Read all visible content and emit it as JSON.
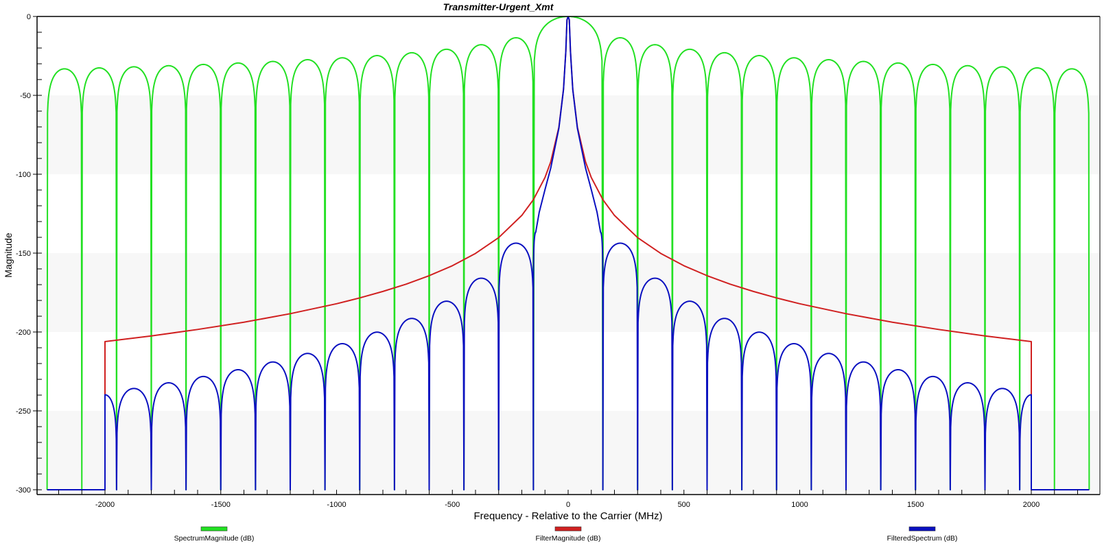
{
  "chart_data": {
    "type": "line",
    "title": "Transmitter-Urgent_Xmt",
    "xlabel": "Frequency - Relative to the Carrier (MHz)",
    "ylabel": "Magnitude",
    "xlim": [
      -2290,
      2290
    ],
    "ylim": [
      -303,
      0
    ],
    "x_ticks": [
      "-2000",
      "-1500",
      "-1000",
      "-500",
      "0",
      "500",
      "1000",
      "1500",
      "2000"
    ],
    "y_ticks": [
      "0",
      "-50",
      "-100",
      "-150",
      "-200",
      "-250",
      "-300"
    ],
    "grid": "alternating horizontal bands",
    "legend_placement": "bottom",
    "series": [
      {
        "name": "SpectrumMagnitude (dB)",
        "color": "#22e022",
        "points": [
          [
            -2250,
            -300
          ],
          [
            -2175,
            -33.2
          ],
          [
            -2100,
            -300
          ],
          [
            -2025,
            -32.6
          ],
          [
            -1950,
            -300
          ],
          [
            -1875,
            -31.9
          ],
          [
            -1800,
            -300
          ],
          [
            -1725,
            -31.2
          ],
          [
            -1650,
            -300
          ],
          [
            -1575,
            -30.4
          ],
          [
            -1500,
            -300
          ],
          [
            -1425,
            -29.5
          ],
          [
            -1350,
            -300
          ],
          [
            -1275,
            -28.5
          ],
          [
            -1200,
            -300
          ],
          [
            -1125,
            -27.4
          ],
          [
            -1050,
            -300
          ],
          [
            -975,
            -26.2
          ],
          [
            -900,
            -300
          ],
          [
            -825,
            -24.8
          ],
          [
            -750,
            -300
          ],
          [
            -675,
            -23.0
          ],
          [
            -600,
            -300
          ],
          [
            -525,
            -20.8
          ],
          [
            -450,
            -300
          ],
          [
            -375,
            -17.9
          ],
          [
            -300,
            -300
          ],
          [
            -225,
            -13.5
          ],
          [
            -150,
            -300
          ],
          [
            0,
            0
          ],
          [
            150,
            -300
          ],
          [
            225,
            -13.5
          ],
          [
            300,
            -300
          ],
          [
            375,
            -17.9
          ],
          [
            450,
            -300
          ],
          [
            525,
            -20.8
          ],
          [
            600,
            -300
          ],
          [
            675,
            -23.0
          ],
          [
            750,
            -300
          ],
          [
            825,
            -24.8
          ],
          [
            900,
            -300
          ],
          [
            975,
            -26.2
          ],
          [
            1050,
            -300
          ],
          [
            1125,
            -27.4
          ],
          [
            1200,
            -300
          ],
          [
            1275,
            -28.5
          ],
          [
            1350,
            -300
          ],
          [
            1425,
            -29.5
          ],
          [
            1500,
            -300
          ],
          [
            1575,
            -30.4
          ],
          [
            1650,
            -300
          ],
          [
            1725,
            -31.2
          ],
          [
            1800,
            -300
          ],
          [
            1875,
            -31.9
          ],
          [
            1950,
            -300
          ],
          [
            2025,
            -32.6
          ],
          [
            2100,
            -300
          ],
          [
            2175,
            -33.2
          ],
          [
            2250,
            -300
          ]
        ],
        "peaks": [
          -2175,
          -2025,
          -1875,
          -1725,
          -1575,
          -1425,
          -1275,
          -1125,
          -975,
          -825,
          -675,
          -525,
          -375,
          -225,
          0,
          225,
          375,
          525,
          675,
          825,
          975,
          1125,
          1275,
          1425,
          1575,
          1725,
          1875,
          2025,
          2175
        ]
      },
      {
        "name": "FilterMagnitude (dB)",
        "color": "#d02020",
        "points": [
          [
            -2250,
            -300
          ],
          [
            -2000,
            -300
          ],
          [
            -2000,
            -206.1
          ],
          [
            -1800,
            -202.5
          ],
          [
            -1600,
            -198.4
          ],
          [
            -1400,
            -193.8
          ],
          [
            -1200,
            -188.4
          ],
          [
            -1000,
            -182.1
          ],
          [
            -900,
            -178.4
          ],
          [
            -800,
            -174.3
          ],
          [
            -700,
            -169.7
          ],
          [
            -600,
            -164.3
          ],
          [
            -500,
            -158.0
          ],
          [
            -400,
            -150.2
          ],
          [
            -300,
            -140.2
          ],
          [
            -200,
            -126.1
          ],
          [
            -150,
            -116.1
          ],
          [
            -100,
            -102.1
          ],
          [
            -75,
            -92.1
          ],
          [
            -40,
            -70.2
          ],
          [
            -20,
            -46.1
          ],
          [
            -10,
            -22.1
          ],
          [
            -5,
            -2.1
          ],
          [
            0,
            0
          ],
          [
            5,
            -2.1
          ],
          [
            10,
            -22.1
          ],
          [
            20,
            -46.1
          ],
          [
            40,
            -70.2
          ],
          [
            75,
            -92.1
          ],
          [
            100,
            -102.1
          ],
          [
            150,
            -116.1
          ],
          [
            200,
            -126.1
          ],
          [
            300,
            -140.2
          ],
          [
            400,
            -150.2
          ],
          [
            500,
            -158.0
          ],
          [
            600,
            -164.3
          ],
          [
            700,
            -169.7
          ],
          [
            800,
            -174.3
          ],
          [
            900,
            -178.4
          ],
          [
            1000,
            -182.1
          ],
          [
            1200,
            -188.4
          ],
          [
            1400,
            -193.8
          ],
          [
            1600,
            -198.4
          ],
          [
            1800,
            -202.5
          ],
          [
            2000,
            -206.1
          ],
          [
            2000,
            -300
          ],
          [
            2250,
            -300
          ]
        ],
        "peaks": []
      },
      {
        "name": "FilteredSpectrum (dB)",
        "color": "#0a10c0",
        "points": [
          [
            -2250,
            -300
          ],
          [
            -2000,
            -300
          ],
          [
            -2000,
            -239.8
          ],
          [
            -1950,
            -300
          ],
          [
            -1875,
            -235.8
          ],
          [
            -1800,
            -300
          ],
          [
            -1725,
            -232.2
          ],
          [
            -1650,
            -300
          ],
          [
            -1575,
            -228.2
          ],
          [
            -1500,
            -300
          ],
          [
            -1425,
            -223.9
          ],
          [
            -1350,
            -300
          ],
          [
            -1275,
            -219.0
          ],
          [
            -1200,
            -300
          ],
          [
            -1125,
            -213.6
          ],
          [
            -1050,
            -300
          ],
          [
            -975,
            -207.4
          ],
          [
            -900,
            -300
          ],
          [
            -825,
            -200.1
          ],
          [
            -750,
            -300
          ],
          [
            -675,
            -191.4
          ],
          [
            -600,
            -300
          ],
          [
            -525,
            -180.5
          ],
          [
            -450,
            -300
          ],
          [
            -375,
            -165.9
          ],
          [
            -300,
            -300
          ],
          [
            -225,
            -143.7
          ],
          [
            -150,
            -300
          ],
          [
            -140,
            -136.8
          ],
          [
            -125,
            -124.2
          ],
          [
            -100,
            -109.8
          ],
          [
            -75,
            -96.0
          ],
          [
            -40,
            -70.9
          ],
          [
            -20,
            -46.3
          ],
          [
            -10,
            -22.1
          ],
          [
            -5,
            -2.2
          ],
          [
            0,
            0
          ],
          [
            5,
            -2.2
          ],
          [
            10,
            -22.1
          ],
          [
            20,
            -46.3
          ],
          [
            40,
            -70.9
          ],
          [
            75,
            -96.0
          ],
          [
            100,
            -109.8
          ],
          [
            125,
            -124.2
          ],
          [
            140,
            -136.8
          ],
          [
            150,
            -300
          ],
          [
            225,
            -143.7
          ],
          [
            300,
            -300
          ],
          [
            375,
            -165.9
          ],
          [
            450,
            -300
          ],
          [
            525,
            -180.5
          ],
          [
            600,
            -300
          ],
          [
            675,
            -191.4
          ],
          [
            750,
            -300
          ],
          [
            825,
            -200.1
          ],
          [
            900,
            -300
          ],
          [
            975,
            -207.4
          ],
          [
            1050,
            -300
          ],
          [
            1125,
            -213.6
          ],
          [
            1200,
            -300
          ],
          [
            1275,
            -219.0
          ],
          [
            1350,
            -300
          ],
          [
            1425,
            -223.9
          ],
          [
            1500,
            -300
          ],
          [
            1575,
            -228.2
          ],
          [
            1650,
            -300
          ],
          [
            1725,
            -232.2
          ],
          [
            1800,
            -300
          ],
          [
            1875,
            -235.8
          ],
          [
            1950,
            -300
          ],
          [
            2000,
            -239.8
          ],
          [
            2000,
            -300
          ],
          [
            2250,
            -300
          ]
        ],
        "peaks": [
          -2000,
          -1875,
          -1725,
          -1575,
          -1425,
          -1275,
          -1125,
          -975,
          -825,
          -675,
          -525,
          -375,
          -225,
          -140,
          140,
          225,
          375,
          525,
          675,
          825,
          975,
          1125,
          1275,
          1425,
          1575,
          1725,
          1875,
          2000
        ]
      }
    ],
    "band_color": "#f7f7f7"
  }
}
